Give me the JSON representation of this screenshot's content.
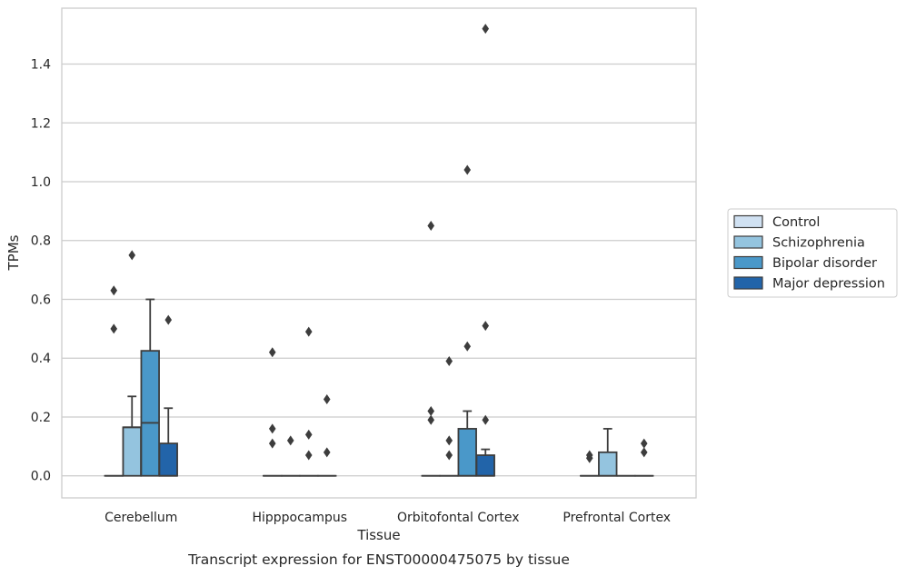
{
  "caption": "Transcript expression for ENST00000475075 by tissue",
  "chart_data": {
    "type": "boxplot",
    "xlabel": "Tissue",
    "ylabel": "TPMs",
    "ylim": [
      -0.075,
      1.59
    ],
    "yticks": [
      0.0,
      0.2,
      0.4,
      0.6,
      0.8,
      1.0,
      1.2,
      1.4
    ],
    "ytick_labels": [
      "0.0",
      "0.2",
      "0.4",
      "0.6",
      "0.8",
      "1.0",
      "1.2",
      "1.4"
    ],
    "grid": "horizontal",
    "legend_position": "right",
    "categories": [
      "Cerebellum",
      "Hipppocampus",
      "Orbitofontal Cortex",
      "Prefrontal Cortex"
    ],
    "series": [
      {
        "name": "Control",
        "color": "#d0e1f2",
        "boxes": [
          {
            "q1": 0,
            "median": 0,
            "q3": 0,
            "whisker_low": 0,
            "whisker_high": 0,
            "outliers": [
              0.5,
              0.63
            ]
          },
          {
            "q1": 0,
            "median": 0,
            "q3": 0,
            "whisker_low": 0,
            "whisker_high": 0,
            "outliers": [
              0.11,
              0.16,
              0.42
            ]
          },
          {
            "q1": 0,
            "median": 0,
            "q3": 0,
            "whisker_low": 0,
            "whisker_high": 0,
            "outliers": [
              0.19,
              0.22,
              0.85
            ]
          },
          {
            "q1": 0,
            "median": 0,
            "q3": 0,
            "whisker_low": 0,
            "whisker_high": 0,
            "outliers": [
              0.06,
              0.07
            ]
          }
        ]
      },
      {
        "name": "Schizophrenia",
        "color": "#94c4df",
        "boxes": [
          {
            "q1": 0,
            "median": 0.165,
            "q3": 0.165,
            "whisker_low": 0,
            "whisker_high": 0.27,
            "outliers": [
              0.75
            ]
          },
          {
            "q1": 0,
            "median": 0,
            "q3": 0,
            "whisker_low": 0,
            "whisker_high": 0,
            "outliers": [
              0.12
            ]
          },
          {
            "q1": 0,
            "median": 0,
            "q3": 0,
            "whisker_low": 0,
            "whisker_high": 0,
            "outliers": [
              0.07,
              0.12,
              0.39
            ]
          },
          {
            "q1": 0,
            "median": 0,
            "q3": 0.08,
            "whisker_low": 0,
            "whisker_high": 0.16,
            "outliers": []
          }
        ]
      },
      {
        "name": "Bipolar disorder",
        "color": "#4a98c9",
        "boxes": [
          {
            "q1": 0,
            "median": 0.18,
            "q3": 0.425,
            "whisker_low": 0,
            "whisker_high": 0.6,
            "outliers": []
          },
          {
            "q1": 0,
            "median": 0,
            "q3": 0,
            "whisker_low": 0,
            "whisker_high": 0,
            "outliers": [
              0.07,
              0.14,
              0.49
            ]
          },
          {
            "q1": 0,
            "median": 0,
            "q3": 0.16,
            "whisker_low": 0,
            "whisker_high": 0.22,
            "outliers": [
              0.44,
              1.04
            ]
          },
          {
            "q1": 0,
            "median": 0,
            "q3": 0,
            "whisker_low": 0,
            "whisker_high": 0,
            "outliers": []
          }
        ]
      },
      {
        "name": "Major depression",
        "color": "#2264a9",
        "boxes": [
          {
            "q1": 0,
            "median": 0,
            "q3": 0.11,
            "whisker_low": 0,
            "whisker_high": 0.23,
            "outliers": [
              0.53
            ]
          },
          {
            "q1": 0,
            "median": 0,
            "q3": 0,
            "whisker_low": 0,
            "whisker_high": 0,
            "outliers": [
              0.08,
              0.26
            ]
          },
          {
            "q1": 0,
            "median": 0,
            "q3": 0.07,
            "whisker_low": 0,
            "whisker_high": 0.09,
            "outliers": [
              0.19,
              0.51,
              1.52
            ]
          },
          {
            "q1": 0,
            "median": 0,
            "q3": 0,
            "whisker_low": 0,
            "whisker_high": 0,
            "outliers": [
              0.08,
              0.11
            ]
          }
        ]
      }
    ]
  }
}
